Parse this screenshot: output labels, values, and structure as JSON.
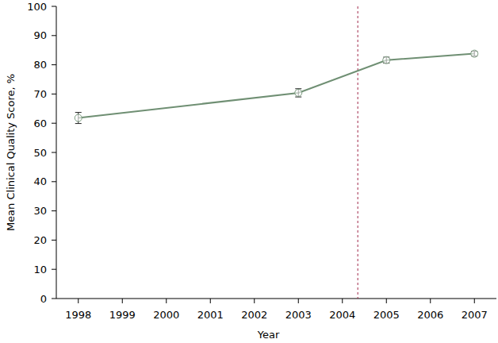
{
  "chart_data": {
    "type": "line",
    "x_label": "Year",
    "y_label": "Mean Clinical Quality Score, %",
    "x": [
      1998,
      2003,
      2005,
      2007
    ],
    "series": [
      {
        "color": "#6f8f73",
        "marker": "circle",
        "line_style": "solid",
        "values": [
          61.8,
          70.4,
          81.6,
          83.8
        ],
        "errors": [
          1.9,
          1.4,
          1.0,
          0.8
        ]
      }
    ],
    "vertical_line": 2004.35,
    "xlim": [
      1997.5,
      2007.5
    ],
    "xticks": [
      1998,
      1999,
      2000,
      2001,
      2002,
      2003,
      2004,
      2005,
      2006,
      2007
    ],
    "ylim": [
      0,
      100
    ],
    "yticks": [
      0,
      10,
      20,
      30,
      40,
      50,
      60,
      70,
      80,
      90,
      100
    ],
    "grid": false
  }
}
